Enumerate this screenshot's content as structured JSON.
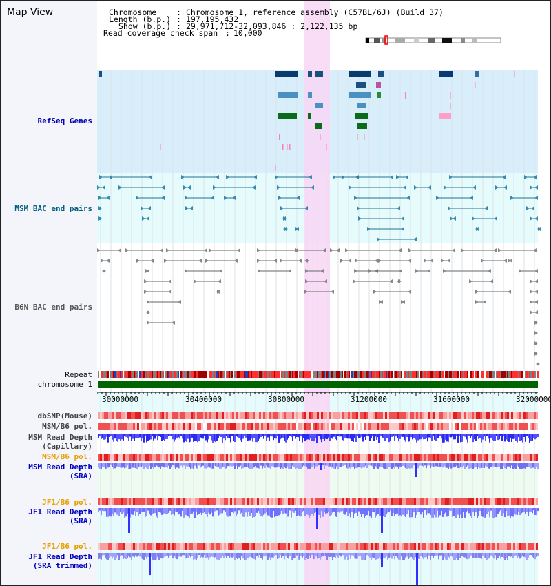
{
  "view_title": "Map View",
  "info": {
    "chromosome_label": "Chromosome",
    "chromosome_value": "Chromosome 1, reference assembly (C57BL/6J) (Build 37)",
    "length_label": "Length (b.p.)",
    "length_value": "197,195,432",
    "show_label": "Show (b.p.)",
    "show_value": "29,971,712-32,093,846 : 2,122,135 bp",
    "coverage_label": "Read coverage check span",
    "coverage_value": "10,000"
  },
  "tracks": {
    "refseq": "RefSeq Genes",
    "msm_bac": "MSM BAC end pairs",
    "b6n_bac": "B6N BAC end pairs",
    "repeat": "Repeat",
    "chromosome": "chromosome 1",
    "dbsnp": "dbSNP(Mouse)",
    "msm_b6_pol": "MSM/B6 pol.",
    "msm_read_depth_cap_1": "MSM Read Depth",
    "msm_read_depth_cap_2": "(Capillary)",
    "msm_b6_pol_sra": "MSM/B6 pol.",
    "msm_read_depth_sra_1": "MSM Read Depth",
    "msm_read_depth_sra_2": "(SRA)",
    "jf1_b6_pol": "JF1/B6 pol.",
    "jf1_read_depth_1": "JF1 Read Depth",
    "jf1_read_depth_2": "(SRA)",
    "jf1_b6_pol_2": "JF1/B6 pol.",
    "jf1_read_depth_trim_1": "JF1 Read Depth",
    "jf1_read_depth_trim_2": "(SRA trimmed)"
  },
  "axis_ticks": [
    "30000000",
    "30400000",
    "30800000",
    "31200000",
    "31600000",
    "32000000"
  ],
  "colors": {
    "refseq_bg": "#d8eefa",
    "bac_bg": "#e6fbfb",
    "highlight": "#f8d6f4",
    "chromosome_bar": "#006400",
    "depth_blue": "#3030ff"
  }
}
